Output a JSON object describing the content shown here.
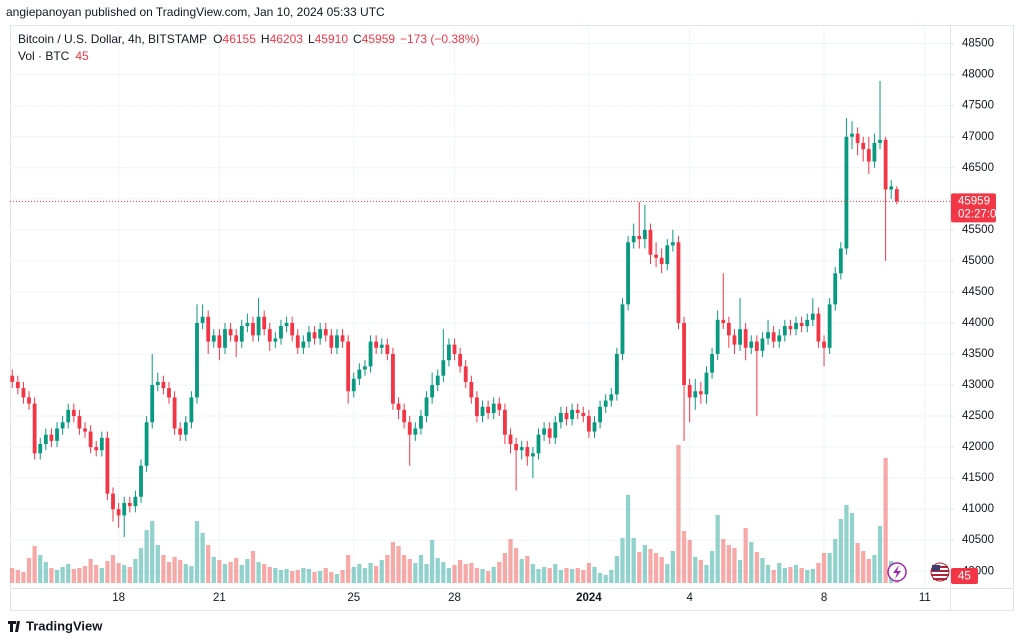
{
  "header": {
    "text": "angiepanoyan published on TradingView.com, Jan 10, 2024 05:33 UTC"
  },
  "footer": {
    "logo": "TradingView"
  },
  "chart_data": {
    "type": "candlestick",
    "symbol": "Bitcoin / U.S. Dollar, 4h, BITSTAMP",
    "ohlc_prefixes": [
      "O",
      "H",
      "L",
      "C"
    ],
    "change_label": "−173 (−0.38%)",
    "volume_label": "Vol · BTC",
    "countdown": "02:27:00",
    "up_color": "#089981",
    "down_color": "#f23645",
    "volume_up_color": "rgba(38,166,154,0.5)",
    "volume_down_color": "rgba(239,83,80,0.5)",
    "grid": true,
    "xlim": [
      -0.4,
      167.5
    ],
    "xticks": [
      {
        "value": 19,
        "label": "18"
      },
      {
        "value": 37,
        "label": "21"
      },
      {
        "value": 61,
        "label": "25"
      },
      {
        "value": 79,
        "label": "28"
      },
      {
        "value": 103,
        "label": "2024",
        "bold": true
      },
      {
        "value": 121,
        "label": "4"
      },
      {
        "value": 145,
        "label": "8"
      },
      {
        "value": 163,
        "label": "11"
      }
    ],
    "ylim": [
      39730,
      48800
    ],
    "yticks": [
      40000,
      40500,
      41000,
      41500,
      42000,
      42500,
      43000,
      43500,
      44000,
      44500,
      45000,
      45500,
      46000,
      46500,
      47000,
      47500,
      48000,
      48500
    ],
    "open": [
      43150,
      43050,
      42950,
      42800,
      42700,
      41900,
      42050,
      42200,
      42100,
      42300,
      42400,
      42600,
      42500,
      42300,
      42250,
      42000,
      41950,
      42150,
      41250,
      41000,
      40900,
      41100,
      41050,
      41200,
      41700,
      42400,
      43000,
      43050,
      42950,
      42800,
      42300,
      42200,
      42400,
      42800,
      44000,
      44100,
      43700,
      43800,
      43600,
      43900,
      43800,
      43700,
      43950,
      44000,
      43800,
      44100,
      43900,
      43700,
      43750,
      43950,
      44000,
      43800,
      43600,
      43700,
      43850,
      43750,
      43900,
      43800,
      43600,
      43800,
      43700,
      42900,
      43100,
      43250,
      43300,
      43700,
      43600,
      43650,
      43500,
      42700,
      42600,
      42400,
      42200,
      42300,
      42500,
      42800,
      43000,
      43150,
      43400,
      43650,
      43500,
      43300,
      43050,
      42800,
      42500,
      42650,
      42550,
      42700,
      42600,
      42200,
      42050,
      41950,
      42000,
      41850,
      41900,
      42200,
      42300,
      42150,
      42400,
      42550,
      42450,
      42600,
      42550,
      42500,
      42250,
      42400,
      42650,
      42750,
      42850,
      43500,
      44300,
      45300,
      45400,
      45350,
      45500,
      45100,
      45050,
      44950,
      45250,
      45300,
      44000,
      43000,
      42800,
      42900,
      42850,
      43200,
      43500,
      44050,
      44000,
      43800,
      43650,
      43900,
      43600,
      43700,
      43550,
      43750,
      43850,
      43700,
      43800,
      43950,
      43900,
      44000,
      43950,
      44050,
      44150,
      43700,
      43600,
      44300,
      44800,
      45200,
      47000,
      47050,
      46900,
      46800,
      46600,
      46900,
      46950,
      46150,
      46155
    ],
    "high": [
      43250,
      43150,
      43050,
      42900,
      42800,
      42150,
      42300,
      42300,
      42400,
      42500,
      42700,
      42700,
      42600,
      42400,
      42350,
      42100,
      42250,
      42250,
      41350,
      41100,
      41200,
      41200,
      41300,
      41800,
      42500,
      43500,
      43200,
      43150,
      43050,
      42900,
      42400,
      42500,
      42900,
      44300,
      44300,
      44200,
      43900,
      43900,
      44000,
      44000,
      43900,
      44050,
      44150,
      44100,
      44400,
      44200,
      44000,
      43850,
      44050,
      44100,
      44100,
      43900,
      43800,
      43950,
      43950,
      44000,
      44000,
      43900,
      43900,
      43900,
      43800,
      43200,
      43350,
      43400,
      43800,
      43800,
      43750,
      43750,
      43600,
      42800,
      42700,
      42500,
      42400,
      42600,
      42900,
      43200,
      43250,
      43900,
      43750,
      43750,
      43600,
      43400,
      43150,
      42900,
      42750,
      42750,
      42800,
      42800,
      42700,
      42300,
      42150,
      42100,
      42100,
      42000,
      42300,
      42400,
      42400,
      42500,
      42650,
      42650,
      42700,
      42700,
      42650,
      42600,
      42500,
      42750,
      42850,
      42950,
      43600,
      44400,
      45400,
      45600,
      45950,
      45900,
      45600,
      45300,
      45200,
      45350,
      45500,
      45400,
      44100,
      43100,
      43100,
      43050,
      43300,
      43600,
      44200,
      44800,
      44100,
      43900,
      44400,
      44000,
      43800,
      43800,
      43850,
      44050,
      43950,
      43900,
      44050,
      44050,
      44100,
      44100,
      44150,
      44400,
      44250,
      43800,
      44400,
      44900,
      45300,
      47300,
      47250,
      47150,
      47000,
      47000,
      47050,
      47900,
      47000,
      46300,
      46203
    ],
    "low": [
      42950,
      42850,
      42700,
      42600,
      41800,
      41800,
      41950,
      42000,
      42000,
      42200,
      42300,
      42400,
      42200,
      42150,
      41900,
      41850,
      41850,
      41150,
      40800,
      40700,
      40550,
      40950,
      40950,
      41100,
      41600,
      42300,
      42900,
      42850,
      42700,
      42200,
      42100,
      42100,
      42300,
      42700,
      43900,
      43500,
      43600,
      43400,
      43500,
      43700,
      43450,
      43600,
      43850,
      43700,
      43700,
      43800,
      43550,
      43600,
      43650,
      43850,
      43700,
      43500,
      43500,
      43600,
      43650,
      43650,
      43700,
      43500,
      43500,
      43600,
      42700,
      42800,
      43000,
      43150,
      43200,
      43500,
      43500,
      43400,
      42600,
      42450,
      42300,
      41700,
      42100,
      42200,
      42400,
      42700,
      42900,
      43050,
      43300,
      43400,
      43200,
      42950,
      42700,
      42400,
      42400,
      42450,
      42450,
      42500,
      42050,
      41900,
      41300,
      41800,
      41700,
      41500,
      41800,
      42100,
      42050,
      42050,
      42300,
      42350,
      42350,
      42450,
      42400,
      42150,
      42150,
      42300,
      42550,
      42650,
      42750,
      43400,
      44200,
      45200,
      45200,
      45200,
      44950,
      44900,
      44800,
      44850,
      45150,
      43900,
      42100,
      42400,
      42600,
      42700,
      42700,
      43100,
      43400,
      43900,
      43600,
      43500,
      43550,
      43400,
      43500,
      42500,
      43450,
      43650,
      43600,
      43600,
      43700,
      43800,
      43800,
      43850,
      43850,
      43950,
      43600,
      43300,
      43500,
      44200,
      44700,
      45100,
      46800,
      46700,
      46600,
      46400,
      46500,
      46800,
      45000,
      46000,
      45910
    ],
    "close": [
      43050,
      42950,
      42800,
      42700,
      41900,
      42050,
      42200,
      42100,
      42300,
      42400,
      42600,
      42500,
      42300,
      42250,
      42000,
      41950,
      42150,
      41250,
      41000,
      40900,
      41100,
      41050,
      41200,
      41700,
      42400,
      43000,
      43050,
      42950,
      42800,
      42300,
      42200,
      42400,
      42800,
      44000,
      44100,
      43700,
      43800,
      43600,
      43900,
      43800,
      43700,
      43950,
      44000,
      43800,
      44100,
      43900,
      43700,
      43750,
      43950,
      44000,
      43800,
      43600,
      43700,
      43850,
      43750,
      43900,
      43800,
      43600,
      43800,
      43700,
      42900,
      43100,
      43250,
      43300,
      43700,
      43600,
      43650,
      43500,
      42700,
      42600,
      42400,
      42200,
      42300,
      42500,
      42800,
      43000,
      43150,
      43400,
      43650,
      43500,
      43300,
      43050,
      42800,
      42500,
      42650,
      42550,
      42700,
      42600,
      42200,
      42050,
      41950,
      42000,
      41850,
      41900,
      42200,
      42300,
      42150,
      42400,
      42550,
      42450,
      42600,
      42550,
      42500,
      42250,
      42400,
      42650,
      42750,
      42850,
      43500,
      44300,
      45300,
      45400,
      45350,
      45500,
      45100,
      45050,
      44950,
      45250,
      45300,
      44000,
      43000,
      42800,
      42900,
      42850,
      43200,
      43500,
      44050,
      44000,
      43800,
      43650,
      43900,
      43600,
      43700,
      43550,
      43750,
      43850,
      43700,
      43800,
      43950,
      43900,
      44000,
      43950,
      44050,
      44150,
      43700,
      43600,
      44300,
      44800,
      45200,
      47000,
      47050,
      46900,
      46800,
      46600,
      46900,
      46950,
      46150,
      46200,
      45959
    ],
    "volume": [
      300,
      260,
      220,
      500,
      740,
      560,
      420,
      300,
      260,
      320,
      380,
      280,
      300,
      340,
      480,
      360,
      300,
      440,
      560,
      400,
      360,
      320,
      480,
      700,
      1060,
      1240,
      760,
      560,
      420,
      520,
      460,
      380,
      340,
      1240,
      1000,
      760,
      520,
      460,
      380,
      420,
      500,
      360,
      480,
      640,
      420,
      380,
      320,
      300,
      260,
      280,
      240,
      260,
      300,
      280,
      220,
      240,
      300,
      220,
      180,
      260,
      560,
      320,
      380,
      300,
      400,
      340,
      460,
      560,
      820,
      740,
      560,
      480,
      400,
      560,
      380,
      860,
      500,
      420,
      300,
      360,
      460,
      380,
      400,
      300,
      280,
      240,
      320,
      420,
      600,
      880,
      700,
      480,
      540,
      380,
      280,
      320,
      300,
      380,
      260,
      300,
      280,
      300,
      260,
      400,
      320,
      200,
      160,
      260,
      540,
      900,
      1760,
      900,
      620,
      760,
      680,
      600,
      520,
      380,
      640,
      2760,
      1040,
      860,
      520,
      460,
      360,
      640,
      1360,
      880,
      760,
      700,
      460,
      1100,
      820,
      620,
      500,
      360,
      260,
      400,
      300,
      320,
      360,
      300,
      260,
      280,
      400,
      600,
      600,
      880,
      1280,
      1560,
      1400,
      800,
      640,
      480,
      560,
      1140,
      2500,
      440,
      45
    ]
  }
}
